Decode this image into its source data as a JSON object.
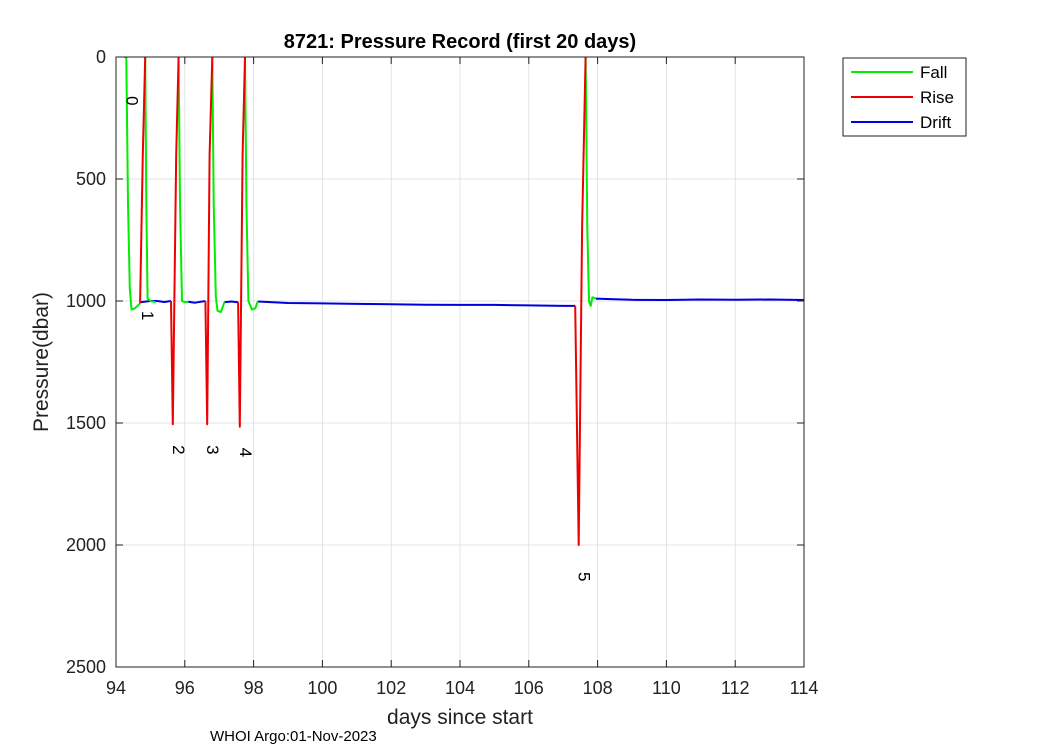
{
  "chart_data": {
    "type": "line",
    "title": "8721: Pressure Record (first 20 days)",
    "xlabel": "days since start",
    "ylabel": "Pressure(dbar)",
    "xlim": [
      94,
      114
    ],
    "ylim": [
      0,
      2500
    ],
    "y_reversed": true,
    "grid": true,
    "xticks": [
      94,
      96,
      98,
      100,
      102,
      104,
      106,
      108,
      110,
      112,
      114
    ],
    "yticks": [
      0,
      500,
      1000,
      1500,
      2000,
      2500
    ],
    "legend": {
      "position": "outside-top-right",
      "entries": [
        "Fall",
        "Rise",
        "Drift"
      ]
    },
    "series": [
      {
        "name": "Fall",
        "color": "#00ee00",
        "segments": [
          [
            [
              94.3,
              0
            ],
            [
              94.35,
              600
            ],
            [
              94.4,
              950
            ],
            [
              94.45,
              1035
            ],
            [
              94.55,
              1030
            ],
            [
              94.7,
              1010
            ]
          ],
          [
            [
              94.85,
              0
            ],
            [
              94.88,
              600
            ],
            [
              94.92,
              990
            ],
            [
              95.0,
              1000
            ],
            [
              95.15,
              1005
            ]
          ],
          [
            [
              95.82,
              0
            ],
            [
              95.86,
              600
            ],
            [
              95.92,
              1000
            ],
            [
              96.0,
              1005
            ],
            [
              96.1,
              1003
            ]
          ],
          [
            [
              96.8,
              0
            ],
            [
              96.84,
              600
            ],
            [
              96.9,
              980
            ],
            [
              96.95,
              1040
            ],
            [
              97.05,
              1045
            ],
            [
              97.15,
              1005
            ]
          ],
          [
            [
              97.75,
              0
            ],
            [
              97.79,
              600
            ],
            [
              97.85,
              1000
            ],
            [
              97.95,
              1035
            ],
            [
              98.05,
              1030
            ],
            [
              98.12,
              1002
            ]
          ],
          [
            [
              107.65,
              0
            ],
            [
              107.7,
              700
            ],
            [
              107.75,
              1000
            ],
            [
              107.8,
              1020
            ],
            [
              107.85,
              985
            ],
            [
              107.95,
              990
            ]
          ]
        ]
      },
      {
        "name": "Rise",
        "color": "#ee0000",
        "segments": [
          [
            [
              94.25,
              0
            ],
            [
              94.3,
              0
            ]
          ],
          [
            [
              94.7,
              1010
            ],
            [
              94.78,
              400
            ],
            [
              94.85,
              0
            ]
          ],
          [
            [
              95.6,
              1000
            ],
            [
              95.65,
              1505
            ],
            [
              95.75,
              400
            ],
            [
              95.82,
              0
            ]
          ],
          [
            [
              96.6,
              1000
            ],
            [
              96.65,
              1505
            ],
            [
              96.72,
              400
            ],
            [
              96.8,
              0
            ]
          ],
          [
            [
              97.55,
              1005
            ],
            [
              97.6,
              1515
            ],
            [
              97.68,
              400
            ],
            [
              97.75,
              0
            ]
          ],
          [
            [
              107.35,
              1020
            ],
            [
              107.45,
              2000
            ],
            [
              107.55,
              700
            ],
            [
              107.65,
              0
            ]
          ]
        ]
      },
      {
        "name": "Drift",
        "color": "#0000dd",
        "segments": [
          [
            [
              94.7,
              1005
            ],
            [
              95.0,
              1000
            ],
            [
              95.2,
              1000
            ],
            [
              95.4,
              1004
            ],
            [
              95.6,
              1000
            ]
          ],
          [
            [
              96.1,
              1003
            ],
            [
              96.3,
              1007
            ],
            [
              96.6,
              1000
            ]
          ],
          [
            [
              97.15,
              1005
            ],
            [
              97.35,
              1002
            ],
            [
              97.55,
              1005
            ]
          ],
          [
            [
              98.12,
              1002
            ],
            [
              99,
              1008
            ],
            [
              100,
              1010
            ],
            [
              101,
              1012
            ],
            [
              102,
              1013
            ],
            [
              103,
              1015
            ],
            [
              104,
              1016
            ],
            [
              105,
              1016
            ],
            [
              106,
              1018
            ],
            [
              107,
              1020
            ],
            [
              107.35,
              1020
            ]
          ],
          [
            [
              107.95,
              990
            ],
            [
              108.5,
              993
            ],
            [
              109,
              995
            ],
            [
              110,
              996
            ],
            [
              111,
              994
            ],
            [
              112,
              995
            ],
            [
              113,
              994
            ],
            [
              114,
              996
            ]
          ]
        ]
      }
    ],
    "annotations": [
      {
        "text": "0",
        "x": 94.3,
        "y": 180
      },
      {
        "text": "1",
        "x": 94.75,
        "y": 1060
      },
      {
        "text": "2",
        "x": 95.65,
        "y": 1610
      },
      {
        "text": "3",
        "x": 96.65,
        "y": 1610
      },
      {
        "text": "4",
        "x": 97.6,
        "y": 1620
      },
      {
        "text": "5",
        "x": 107.45,
        "y": 2130
      }
    ]
  },
  "footer": "WHOI Argo:01-Nov-2023"
}
